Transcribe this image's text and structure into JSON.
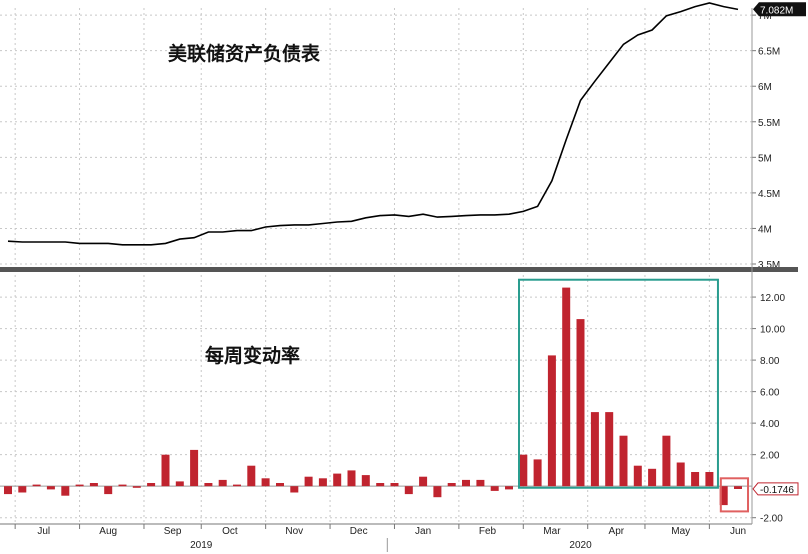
{
  "chart_data": [
    {
      "type": "line",
      "title": "美联储资产负债表",
      "y_ticks": [
        "7M",
        "6.5M",
        "6M",
        "5.5M",
        "5M",
        "4.5M",
        "4M",
        "3.5M"
      ],
      "y_tick_values": [
        7.0,
        6.5,
        6.0,
        5.5,
        5.0,
        4.5,
        4.0,
        3.5
      ],
      "ylim": [
        3.5,
        7.1
      ],
      "last_value_label": "7.082M",
      "last_value": 7.082,
      "color": "#000000",
      "x_weeks": [
        0,
        1,
        2,
        3,
        4,
        5,
        6,
        7,
        8,
        9,
        10,
        11,
        12,
        13,
        14,
        15,
        16,
        17,
        18,
        19,
        20,
        21,
        22,
        23,
        24,
        25,
        26,
        27,
        28,
        29,
        30,
        31,
        32,
        33,
        34,
        35,
        36,
        37,
        38,
        39,
        40,
        41,
        42,
        43,
        44,
        45,
        46,
        47,
        48,
        49,
        50,
        51
      ],
      "values": [
        3.82,
        3.81,
        3.81,
        3.81,
        3.81,
        3.79,
        3.79,
        3.79,
        3.77,
        3.77,
        3.77,
        3.79,
        3.85,
        3.87,
        3.95,
        3.95,
        3.97,
        3.97,
        4.02,
        4.04,
        4.05,
        4.05,
        4.07,
        4.09,
        4.1,
        4.15,
        4.18,
        4.19,
        4.17,
        4.2,
        4.16,
        4.17,
        4.18,
        4.19,
        4.19,
        4.2,
        4.24,
        4.31,
        4.67,
        5.25,
        5.8,
        6.07,
        6.33,
        6.59,
        6.72,
        6.79,
        6.99,
        7.05,
        7.12,
        7.17,
        7.12,
        7.08
      ]
    },
    {
      "type": "bar",
      "title": "每周变动率",
      "y_ticks": [
        "12.00",
        "10.00",
        "8.00",
        "6.00",
        "4.00",
        "2.00",
        "-2.00"
      ],
      "y_tick_values": [
        12,
        10,
        8,
        6,
        4,
        2,
        -2
      ],
      "ylim": [
        -2.4,
        13.4
      ],
      "last_value_label": "-0.1746",
      "last_value": -0.1746,
      "color": "#c0242f",
      "x_weeks": [
        0,
        1,
        2,
        3,
        4,
        5,
        6,
        7,
        8,
        9,
        10,
        11,
        12,
        13,
        14,
        15,
        16,
        17,
        18,
        19,
        20,
        21,
        22,
        23,
        24,
        25,
        26,
        27,
        28,
        29,
        30,
        31,
        32,
        33,
        34,
        35,
        36,
        37,
        38,
        39,
        40,
        41,
        42,
        43,
        44,
        45,
        46,
        47,
        48,
        49,
        50,
        51
      ],
      "values": [
        -0.5,
        -0.4,
        0.1,
        -0.2,
        -0.6,
        0.1,
        0.2,
        -0.5,
        0.1,
        -0.1,
        0.2,
        2.0,
        0.3,
        2.3,
        0.2,
        0.4,
        0.1,
        1.3,
        0.5,
        0.2,
        -0.4,
        0.6,
        0.5,
        0.8,
        1.0,
        0.7,
        0.2,
        0.2,
        -0.5,
        0.6,
        -0.7,
        0.2,
        0.4,
        0.4,
        -0.3,
        -0.2,
        2.0,
        1.7,
        8.3,
        12.6,
        10.6,
        4.7,
        4.7,
        3.2,
        1.3,
        1.1,
        3.2,
        1.5,
        0.9,
        0.9,
        -1.2,
        -0.1746
      ]
    }
  ],
  "x_axis": {
    "months": [
      "Jul",
      "Aug",
      "Sep",
      "Oct",
      "Nov",
      "Dec",
      "Jan",
      "Feb",
      "Mar",
      "Apr",
      "May",
      "Jun"
    ],
    "month_label_weeks": [
      2.5,
      7,
      11.5,
      15.5,
      20,
      24.5,
      29,
      33.5,
      38,
      42.5,
      47,
      51
    ],
    "month_boundary_weeks": [
      0.5,
      5,
      9.5,
      13.5,
      18,
      22.5,
      27,
      31.5,
      36,
      40.5,
      44.5,
      49
    ],
    "years": [
      "2019",
      "2020"
    ],
    "year_label_weeks": [
      13.5,
      40
    ],
    "year_boundary_week": 26.5
  },
  "annotations": {
    "surge_box_color": "#2a9d8f",
    "last_week_box_color": "#e06060"
  }
}
